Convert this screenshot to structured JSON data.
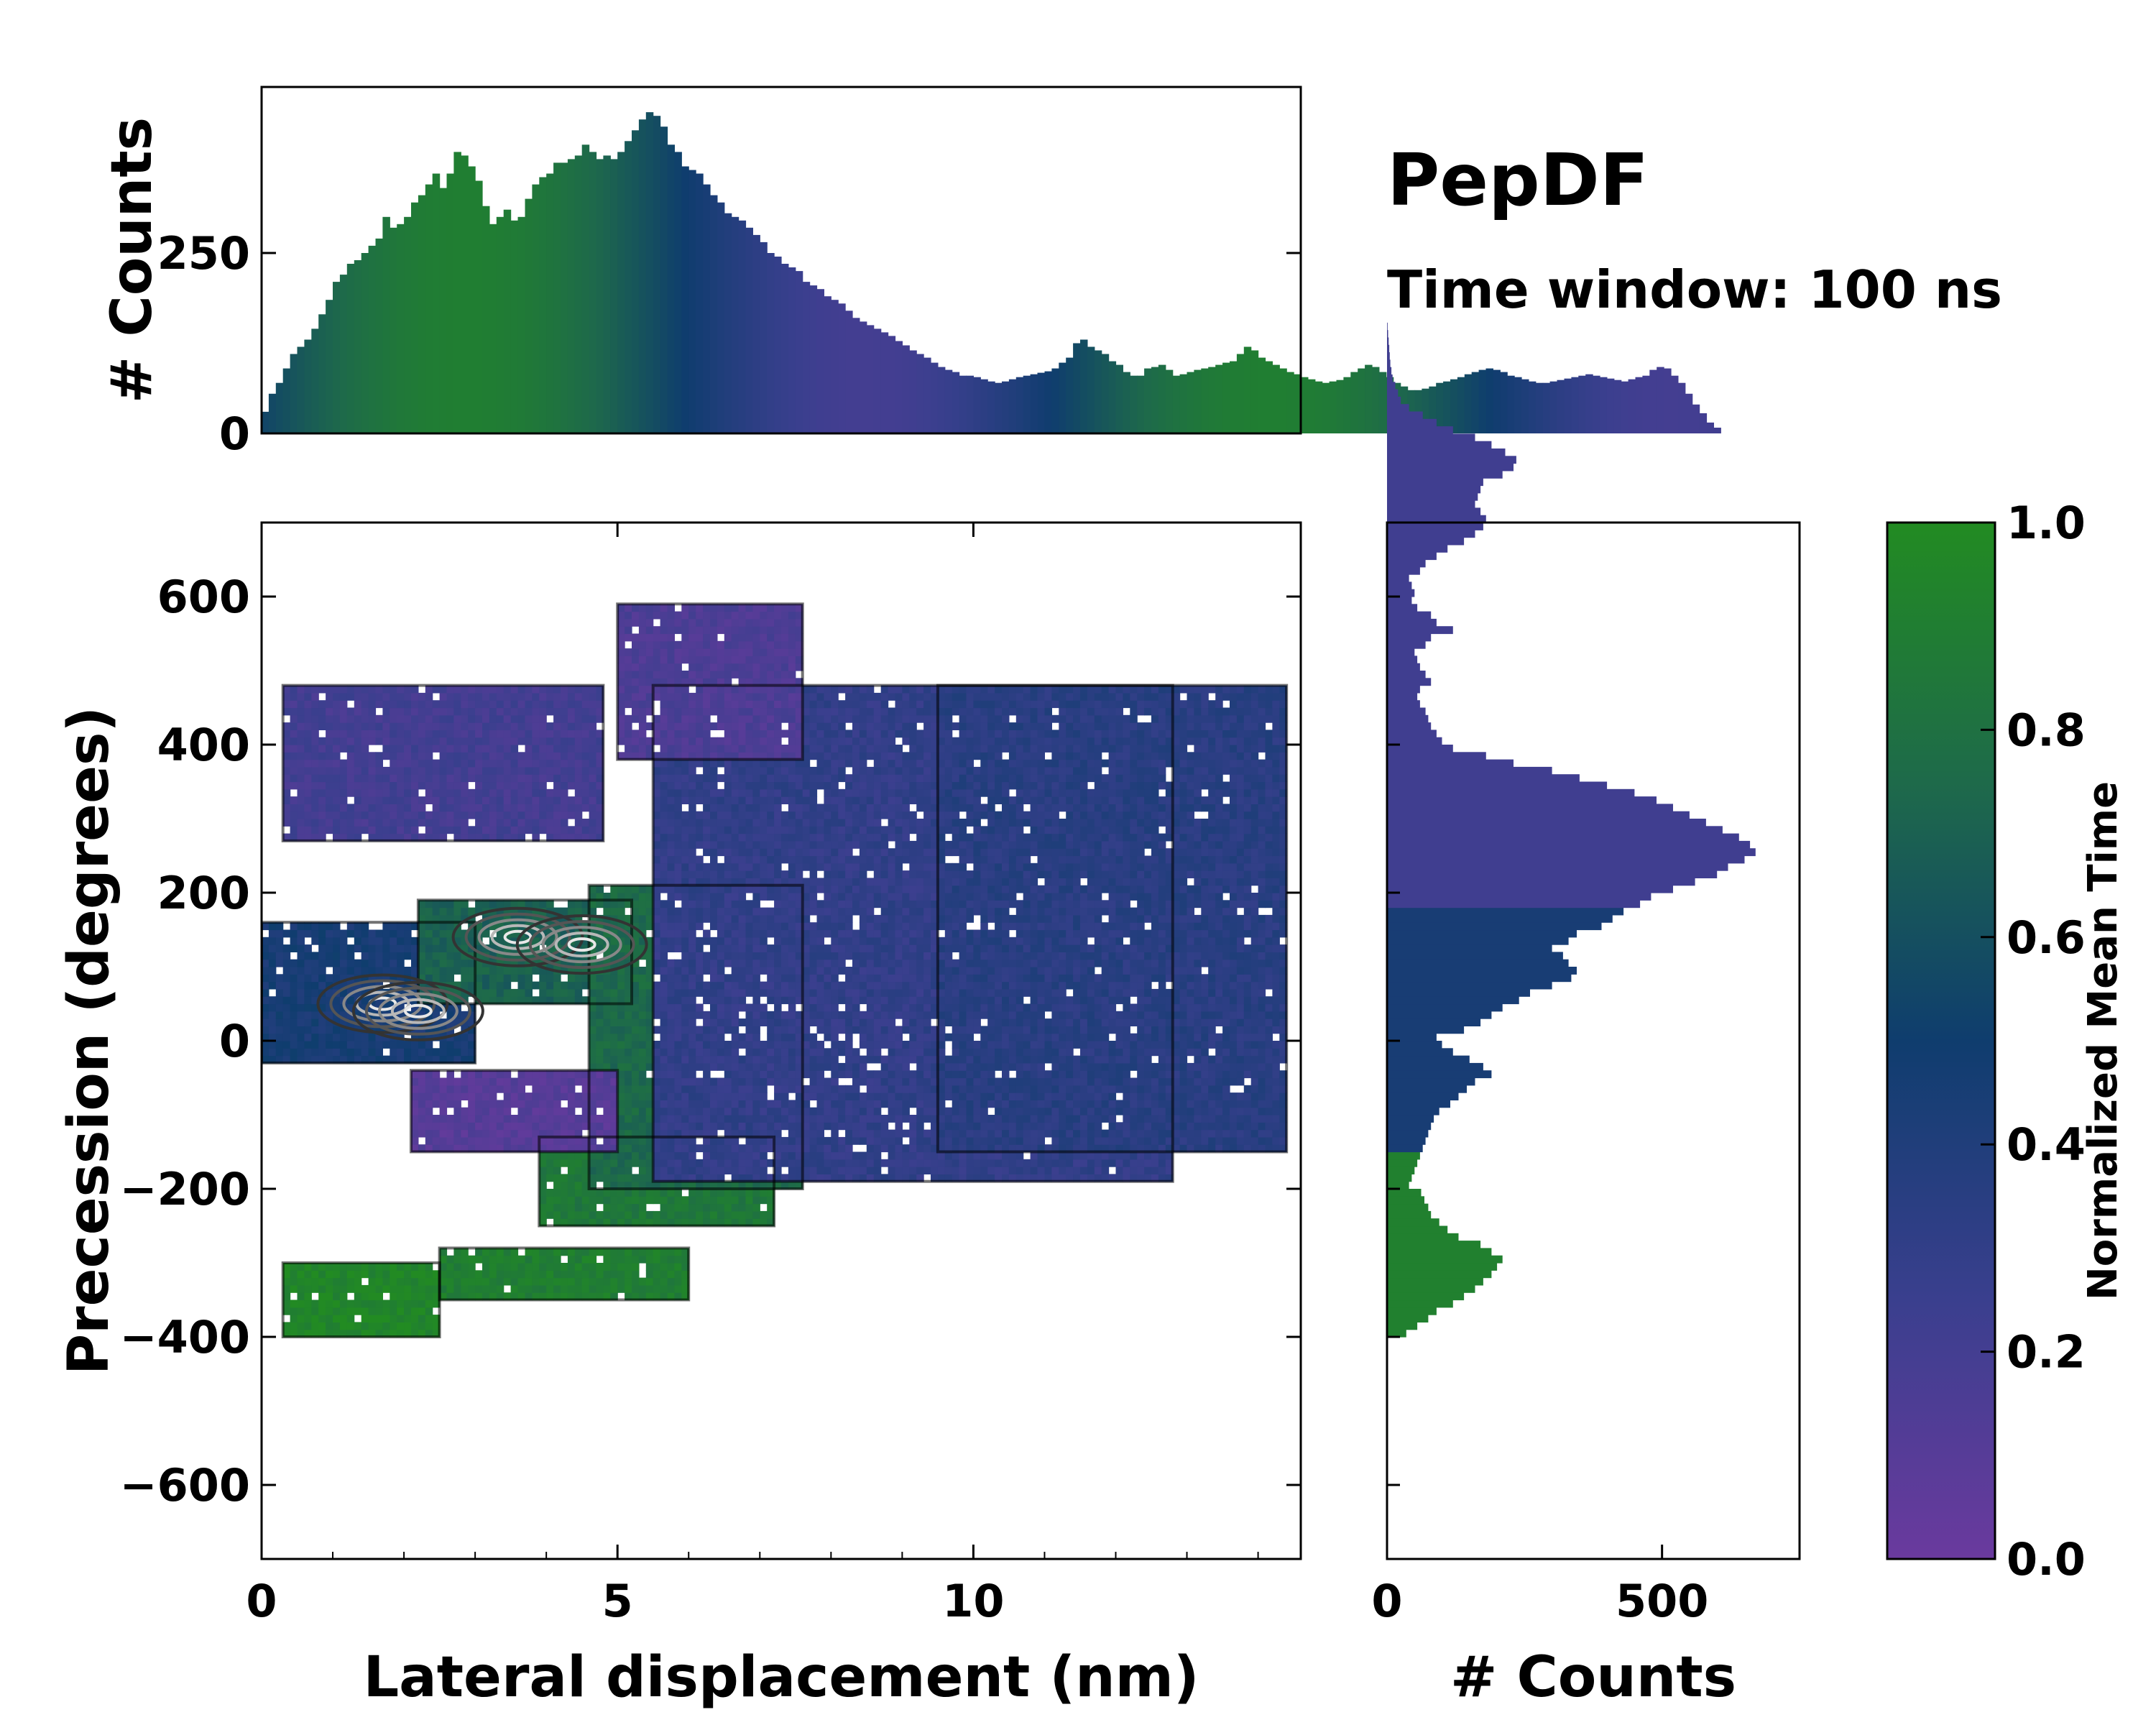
{
  "chart_data": {
    "type": "heatmap",
    "title": "PepDF",
    "subtitle": "Time window: 100 ns",
    "main": {
      "xlabel": "Lateral displacement (nm)",
      "ylabel": "Precession (degrees)",
      "xlim": [
        0,
        14.6
      ],
      "ylim": [
        -700,
        700
      ],
      "xticks": [
        0,
        5,
        10
      ],
      "yticks": [
        -600,
        -400,
        -200,
        0,
        200,
        400,
        600
      ],
      "color_value": "Normalized Mean Time",
      "regions": [
        {
          "x": [
            0.3,
            2.5
          ],
          "y": [
            -400,
            -300
          ],
          "value": 0.95
        },
        {
          "x": [
            2.5,
            6.0
          ],
          "y": [
            -350,
            -280
          ],
          "value": 0.9
        },
        {
          "x": [
            3.9,
            7.2
          ],
          "y": [
            -250,
            -130
          ],
          "value": 0.85
        },
        {
          "x": [
            0.0,
            3.0
          ],
          "y": [
            -30,
            160
          ],
          "value": 0.45
        },
        {
          "x": [
            2.2,
            5.2
          ],
          "y": [
            50,
            190
          ],
          "value": 0.7
        },
        {
          "x": [
            4.6,
            7.6
          ],
          "y": [
            -200,
            210
          ],
          "value": 0.75
        },
        {
          "x": [
            2.1,
            5.0
          ],
          "y": [
            -150,
            -40
          ],
          "value": 0.1
        },
        {
          "x": [
            5.5,
            12.8
          ],
          "y": [
            -190,
            480
          ],
          "value": 0.3
        },
        {
          "x": [
            9.5,
            14.4
          ],
          "y": [
            -150,
            480
          ],
          "value": 0.35
        },
        {
          "x": [
            0.3,
            4.8
          ],
          "y": [
            270,
            480
          ],
          "value": 0.2
        },
        {
          "x": [
            5.0,
            7.6
          ],
          "y": [
            380,
            590
          ],
          "value": 0.15
        }
      ],
      "density_peaks": [
        {
          "x": 1.7,
          "y": 50
        },
        {
          "x": 2.2,
          "y": 40
        },
        {
          "x": 3.6,
          "y": 140
        },
        {
          "x": 4.5,
          "y": 130
        }
      ]
    },
    "top_histogram": {
      "ylabel": "# Counts",
      "yticks": [
        0,
        250
      ],
      "ylim": [
        0,
        480
      ],
      "x_start": 0,
      "bin_width": 0.1,
      "counts": [
        30,
        55,
        70,
        90,
        110,
        120,
        130,
        145,
        165,
        185,
        210,
        220,
        235,
        240,
        250,
        260,
        270,
        300,
        285,
        290,
        300,
        320,
        330,
        345,
        360,
        340,
        360,
        390,
        385,
        370,
        350,
        315,
        290,
        300,
        310,
        295,
        300,
        325,
        345,
        355,
        360,
        375,
        375,
        380,
        385,
        400,
        390,
        380,
        385,
        380,
        390,
        405,
        420,
        435,
        445,
        440,
        425,
        400,
        390,
        370,
        365,
        360,
        345,
        330,
        320,
        305,
        300,
        295,
        285,
        275,
        265,
        250,
        245,
        235,
        230,
        225,
        210,
        205,
        200,
        190,
        185,
        180,
        170,
        160,
        155,
        150,
        145,
        140,
        135,
        128,
        122,
        115,
        110,
        105,
        98,
        92,
        88,
        85,
        80,
        80,
        78,
        75,
        72,
        70,
        72,
        75,
        78,
        80,
        82,
        84,
        86,
        90,
        98,
        105,
        125,
        130,
        120,
        115,
        110,
        100,
        95,
        85,
        80,
        80,
        90,
        92,
        95,
        88,
        80,
        82,
        85,
        88,
        90,
        92,
        95,
        98,
        100,
        110,
        120,
        115,
        105,
        100,
        95,
        90,
        85,
        82,
        78,
        75,
        72,
        70,
        72,
        74,
        78,
        85,
        90,
        95,
        92,
        85,
        78,
        70,
        65,
        60,
        60,
        62,
        65,
        70,
        72,
        75,
        78,
        82,
        85,
        88,
        90,
        88,
        85,
        80,
        78,
        75,
        72,
        70,
        70,
        72,
        74,
        76,
        78,
        80,
        82,
        80,
        78,
        76,
        74,
        72,
        75,
        78,
        80,
        88,
        92,
        90,
        80,
        70,
        55,
        40,
        28,
        15,
        8
      ]
    },
    "right_histogram": {
      "xlabel": "# Counts",
      "xticks": [
        0,
        500
      ],
      "xlim": [
        0,
        750
      ],
      "bin_width": 10,
      "y_start": -400,
      "counts": [
        35,
        55,
        75,
        90,
        120,
        140,
        160,
        175,
        190,
        200,
        210,
        190,
        170,
        130,
        110,
        95,
        80,
        75,
        68,
        62,
        40,
        45,
        50,
        55,
        60,
        65,
        70,
        75,
        80,
        85,
        95,
        115,
        130,
        145,
        160,
        190,
        175,
        150,
        120,
        100,
        90,
        140,
        170,
        190,
        210,
        240,
        260,
        300,
        335,
        345,
        330,
        320,
        300,
        330,
        345,
        390,
        410,
        430,
        460,
        480,
        520,
        560,
        600,
        620,
        650,
        670,
        660,
        640,
        610,
        580,
        550,
        520,
        490,
        450,
        400,
        350,
        300,
        230,
        180,
        120,
        100,
        90,
        80,
        75,
        70,
        60,
        55,
        60,
        80,
        70,
        60,
        55,
        50,
        70,
        80,
        120,
        90,
        80,
        55,
        45,
        50,
        45,
        40,
        60,
        70,
        90,
        110,
        140,
        160,
        175,
        180,
        170,
        160,
        165,
        170,
        175,
        210,
        230,
        235,
        215,
        190,
        160,
        120,
        90,
        65,
        40,
        25,
        20,
        15,
        10,
        8,
        6,
        5,
        4,
        3,
        2,
        1
      ]
    },
    "colorbar": {
      "label": "Normalized Mean Time",
      "range": [
        0.0,
        1.0
      ],
      "ticks": [
        "0.0",
        "0.2",
        "0.4",
        "0.6",
        "0.8",
        "1.0"
      ],
      "stops": [
        {
          "offset": 0.0,
          "color": "#6a3a9e"
        },
        {
          "offset": 0.25,
          "color": "#3a3f8e"
        },
        {
          "offset": 0.5,
          "color": "#0f3d6e"
        },
        {
          "offset": 0.75,
          "color": "#1e6a4a"
        },
        {
          "offset": 1.0,
          "color": "#228b22"
        }
      ]
    }
  },
  "labels": {
    "title": "PepDF",
    "subtitle": "Time window: 100 ns",
    "top_ylabel": "# Counts",
    "main_xlabel": "Lateral displacement (nm)",
    "main_ylabel": "Precession (degrees)",
    "right_xlabel": "# Counts",
    "colorbar_label": "Normalized Mean Time"
  }
}
